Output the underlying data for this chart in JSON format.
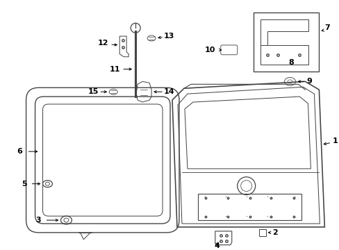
{
  "bg_color": "#ffffff",
  "line_color": "#444444",
  "label_color": "#000000",
  "fig_width": 4.89,
  "fig_height": 3.6,
  "dpi": 100,
  "lw": 0.9
}
